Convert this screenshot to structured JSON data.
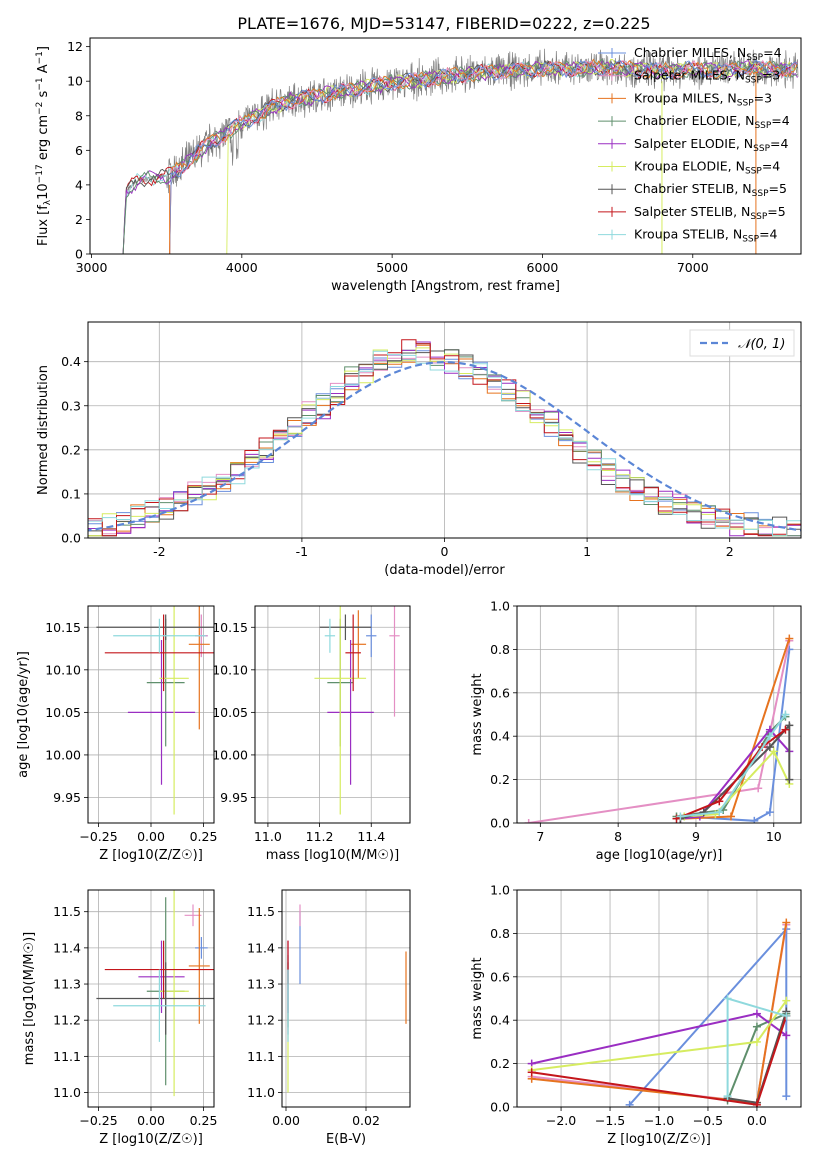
{
  "title": "PLATE=1676, MJD=53147, FIBERID=0222, z=0.225",
  "colors": {
    "chabrier_miles": "#6a8fdd",
    "salpeter_miles": "#e48fc4",
    "kroupa_miles": "#e6731f",
    "chabrier_elodie": "#5f8f6c",
    "salpeter_elodie": "#9a2ec2",
    "kroupa_elodie": "#d6ec60",
    "chabrier_stelib": "#555555",
    "salpeter_stelib": "#c4161b",
    "kroupa_stelib": "#8fd9dd",
    "data_gray": "#808080",
    "gauss": "#5b86d6"
  },
  "chart_data": [
    {
      "id": "spectrum",
      "type": "line",
      "title": "PLATE=1676, MJD=53147, FIBERID=0222, z=0.225",
      "xlabel": "wavelength [Angstrom, rest frame]",
      "ylabel": "Flux [f_λ10^-17 erg cm^-2 s^-1 A^-1]",
      "xlim": [
        2990,
        7720
      ],
      "ylim": [
        0,
        12.5
      ],
      "xticks": [
        3000,
        4000,
        5000,
        6000,
        7000
      ],
      "yticks": [
        0,
        2,
        4,
        6,
        8,
        10,
        12
      ],
      "legend_position": "top-right",
      "series": [
        {
          "name": "Chabrier MILES, N_SSP=4",
          "color": "#6a8fdd"
        },
        {
          "name": "Salpeter MILES, N_SSP=3",
          "color": "#e48fc4"
        },
        {
          "name": "Kroupa MILES, N_SSP=3",
          "color": "#e6731f"
        },
        {
          "name": "Chabrier ELODIE, N_SSP=4",
          "color": "#5f8f6c"
        },
        {
          "name": "Salpeter ELODIE, N_SSP=4",
          "color": "#9a2ec2"
        },
        {
          "name": "Kroupa ELODIE, N_SSP=4",
          "color": "#d6ec60"
        },
        {
          "name": "Chabrier STELIB, N_SSP=5",
          "color": "#555555"
        },
        {
          "name": "Salpeter STELIB, N_SSP=5",
          "color": "#c4161b"
        },
        {
          "name": "Kroupa STELIB, N_SSP=4",
          "color": "#8fd9dd"
        }
      ],
      "continuum_x": [
        3210,
        3230,
        3300,
        3400,
        3500,
        3600,
        3700,
        3800,
        3900,
        4000,
        4100,
        4200,
        4300,
        4400,
        4600,
        4800,
        5000,
        5200,
        5400,
        5600,
        5800,
        6000,
        6200,
        6400,
        6600,
        6800,
        7000,
        7200,
        7400,
        7500
      ],
      "continuum_y": [
        0,
        3.6,
        4.2,
        4.4,
        4.5,
        5.0,
        5.8,
        6.5,
        7.0,
        7.6,
        8.0,
        8.5,
        8.8,
        9.0,
        9.3,
        9.6,
        9.9,
        10.1,
        10.3,
        10.5,
        10.6,
        10.7,
        10.7,
        10.8,
        10.7,
        10.6,
        10.7,
        10.6,
        10.8,
        10.7
      ],
      "model_starts": [
        3210,
        3520,
        3900
      ],
      "red_edge": 7420
    },
    {
      "id": "residual_hist",
      "type": "line",
      "xlabel": "(data-model)/error",
      "ylabel": "Normed distribution",
      "xlim": [
        -2.5,
        2.5
      ],
      "ylim": [
        0,
        0.49
      ],
      "xticks": [
        -2,
        -1,
        0,
        1,
        2
      ],
      "yticks": [
        0,
        0.1,
        0.2,
        0.3,
        0.4
      ],
      "legend": [
        {
          "name": "𝒩(0, 1)",
          "style": "dashed"
        }
      ],
      "bin_width": 0.1,
      "bin_start": -2.5,
      "series_base": [
        0.02,
        0.03,
        0.04,
        0.05,
        0.06,
        0.07,
        0.09,
        0.1,
        0.11,
        0.13,
        0.15,
        0.17,
        0.2,
        0.22,
        0.25,
        0.28,
        0.3,
        0.33,
        0.36,
        0.38,
        0.4,
        0.41,
        0.42,
        0.42,
        0.41,
        0.4,
        0.39,
        0.37,
        0.35,
        0.33,
        0.31,
        0.28,
        0.26,
        0.23,
        0.2,
        0.18,
        0.15,
        0.13,
        0.11,
        0.09,
        0.08,
        0.07,
        0.06,
        0.05,
        0.04,
        0.03,
        0.03,
        0.02,
        0.02,
        0.02
      ]
    },
    {
      "id": "age_vs_Z",
      "type": "scatter",
      "xlabel": "Z [log10(Z/Z☉)]",
      "ylabel": "age [log10(age/yr)]",
      "xlim": [
        -0.3,
        0.3
      ],
      "ylim": [
        9.92,
        10.175
      ],
      "xticks": [
        -0.25,
        0.0,
        0.25
      ],
      "xticklabels": [
        "−0.25",
        "0.00",
        "0.25"
      ],
      "yticks": [
        9.95,
        10.0,
        10.05,
        10.1,
        10.15
      ],
      "points": [
        {
          "x": 0.24,
          "y": 10.14,
          "xerr": 0.03,
          "yerr": 0.025,
          "c": "chabrier_miles"
        },
        {
          "x": 0.24,
          "y": 10.14,
          "xerr": 0.03,
          "yerr": 0.025,
          "c": "salpeter_miles"
        },
        {
          "x": 0.23,
          "y": 10.13,
          "xerr": 0.05,
          "yerr": 0.1,
          "c": "kroupa_miles"
        },
        {
          "x": 0.07,
          "y": 10.085,
          "xerr": 0.09,
          "yerr": 0.075,
          "c": "chabrier_elodie"
        },
        {
          "x": 0.05,
          "y": 10.05,
          "xerr": 0.16,
          "yerr": 0.085,
          "c": "salpeter_elodie"
        },
        {
          "x": 0.11,
          "y": 10.09,
          "xerr": 0.07,
          "yerr": 0.16,
          "c": "kroupa_elodie"
        },
        {
          "x": 0.07,
          "y": 10.15,
          "xerr": 0.33,
          "yerr": 0.015,
          "c": "chabrier_stelib"
        },
        {
          "x": 0.06,
          "y": 10.12,
          "xerr": 0.28,
          "yerr": 0.045,
          "c": "salpeter_stelib"
        },
        {
          "x": 0.04,
          "y": 10.14,
          "xerr": 0.22,
          "yerr": 0.02,
          "c": "kroupa_stelib"
        }
      ]
    },
    {
      "id": "age_vs_mass",
      "type": "scatter",
      "xlabel": "mass [log10(M/M☉)]",
      "ylim": [
        9.92,
        10.175
      ],
      "xlim": [
        10.95,
        11.55
      ],
      "xticks": [
        11.0,
        11.2,
        11.4
      ],
      "xticklabels": [
        "11.0",
        "11.2",
        "11.4"
      ],
      "yticks": [
        9.95,
        10.0,
        10.05,
        10.1,
        10.15
      ],
      "points": [
        {
          "x": 11.4,
          "y": 10.14,
          "xerr": 0.02,
          "yerr": 0.025,
          "c": "chabrier_miles"
        },
        {
          "x": 11.49,
          "y": 10.14,
          "xerr": 0.02,
          "yerr": 0.095,
          "c": "salpeter_miles"
        },
        {
          "x": 11.35,
          "y": 10.13,
          "xerr": 0.03,
          "yerr": 0.04,
          "c": "kroupa_miles"
        },
        {
          "x": 11.28,
          "y": 10.085,
          "xerr": 0.05,
          "yerr": 0.075,
          "c": "chabrier_elodie"
        },
        {
          "x": 11.32,
          "y": 10.05,
          "xerr": 0.09,
          "yerr": 0.085,
          "c": "salpeter_elodie"
        },
        {
          "x": 11.28,
          "y": 10.09,
          "xerr": 0.1,
          "yerr": 0.16,
          "c": "kroupa_elodie"
        },
        {
          "x": 11.3,
          "y": 10.15,
          "xerr": 0.1,
          "yerr": 0.015,
          "c": "chabrier_stelib"
        },
        {
          "x": 11.33,
          "y": 10.12,
          "xerr": 0.03,
          "yerr": 0.045,
          "c": "salpeter_stelib"
        },
        {
          "x": 11.24,
          "y": 10.14,
          "xerr": 0.02,
          "yerr": 0.02,
          "c": "kroupa_stelib"
        }
      ]
    },
    {
      "id": "weight_vs_age",
      "type": "line",
      "xlabel": "age [log10(age/yr)]",
      "ylabel": "mass weight",
      "xlim": [
        6.7,
        10.35
      ],
      "ylim": [
        0,
        1.0
      ],
      "xticks": [
        7,
        8,
        9,
        10
      ],
      "yticks": [
        0,
        0.2,
        0.4,
        0.6,
        0.8,
        1.0
      ],
      "series": [
        {
          "c": "chabrier_miles",
          "x": [
            8.85,
            9.75,
            9.95,
            10.2
          ],
          "y": [
            0.03,
            0.01,
            0.05,
            0.8
          ]
        },
        {
          "c": "salpeter_miles",
          "x": [
            6.85,
            9.8,
            10.2
          ],
          "y": [
            0.0,
            0.16,
            0.84
          ]
        },
        {
          "c": "kroupa_miles",
          "x": [
            8.8,
            9.45,
            10.2
          ],
          "y": [
            0.02,
            0.03,
            0.85
          ]
        },
        {
          "c": "chabrier_elodie",
          "x": [
            8.75,
            9.35,
            9.95,
            10.15
          ],
          "y": [
            0.03,
            0.06,
            0.42,
            0.49
          ]
        },
        {
          "c": "salpeter_elodie",
          "x": [
            8.8,
            9.05,
            9.95,
            10.2
          ],
          "y": [
            0.02,
            0.03,
            0.43,
            0.33
          ]
        },
        {
          "c": "kroupa_elodie",
          "x": [
            8.85,
            9.25,
            10.0,
            10.2
          ],
          "y": [
            0.03,
            0.04,
            0.33,
            0.18
          ]
        },
        {
          "c": "chabrier_stelib",
          "x": [
            8.8,
            9.1,
            9.95,
            10.2,
            10.2
          ],
          "y": [
            0.02,
            0.05,
            0.35,
            0.45,
            0.2
          ]
        },
        {
          "c": "salpeter_stelib",
          "x": [
            8.75,
            9.3,
            9.85,
            10.15
          ],
          "y": [
            0.02,
            0.1,
            0.35,
            0.43
          ]
        },
        {
          "c": "kroupa_stelib",
          "x": [
            8.8,
            9.3,
            9.95,
            10.15
          ],
          "y": [
            0.03,
            0.05,
            0.4,
            0.5
          ]
        }
      ]
    },
    {
      "id": "mass_vs_Z",
      "type": "scatter",
      "xlabel": "Z [log10(Z/Z☉)]",
      "ylabel": "mass [log10(M/M☉)]",
      "xlim": [
        -0.3,
        0.3
      ],
      "ylim": [
        10.96,
        11.56
      ],
      "xticks": [
        -0.25,
        0.0,
        0.25
      ],
      "xticklabels": [
        "−0.25",
        "0.00",
        "0.25"
      ],
      "yticks": [
        11.0,
        11.1,
        11.2,
        11.3,
        11.4,
        11.5
      ],
      "points": [
        {
          "x": 0.24,
          "y": 11.4,
          "xerr": 0.03,
          "yerr": 0.03,
          "c": "chabrier_miles"
        },
        {
          "x": 0.2,
          "y": 11.49,
          "xerr": 0.04,
          "yerr": 0.03,
          "c": "salpeter_miles"
        },
        {
          "x": 0.23,
          "y": 11.35,
          "xerr": 0.05,
          "yerr": 0.16,
          "c": "kroupa_miles"
        },
        {
          "x": 0.07,
          "y": 11.28,
          "xerr": 0.09,
          "yerr": 0.26,
          "c": "chabrier_elodie"
        },
        {
          "x": 0.05,
          "y": 11.32,
          "xerr": 0.11,
          "yerr": 0.1,
          "c": "salpeter_elodie"
        },
        {
          "x": 0.11,
          "y": 11.28,
          "xerr": 0.07,
          "yerr": 0.29,
          "c": "kroupa_elodie"
        },
        {
          "x": 0.07,
          "y": 11.26,
          "xerr": 0.33,
          "yerr": 0.1,
          "c": "chabrier_stelib"
        },
        {
          "x": 0.06,
          "y": 11.34,
          "xerr": 0.28,
          "yerr": 0.08,
          "c": "salpeter_stelib"
        },
        {
          "x": 0.04,
          "y": 11.24,
          "xerr": 0.22,
          "yerr": 0.1,
          "c": "kroupa_stelib"
        }
      ]
    },
    {
      "id": "mass_vs_ebv",
      "type": "scatter",
      "xlabel": "E(B-V)",
      "xlim": [
        -0.001,
        0.031
      ],
      "ylim": [
        10.96,
        11.56
      ],
      "xticks": [
        0.0,
        0.02
      ],
      "xticklabels": [
        "0.00",
        "0.02"
      ],
      "yticks": [
        11.0,
        11.1,
        11.2,
        11.3,
        11.4,
        11.5
      ],
      "points": [
        {
          "x": 0.0035,
          "y": 11.4,
          "yerr": 0.1,
          "c": "chabrier_miles"
        },
        {
          "x": 0.0035,
          "y": 11.49,
          "yerr": 0.03,
          "c": "salpeter_miles"
        },
        {
          "x": 0.03,
          "y": 11.29,
          "yerr": 0.1,
          "c": "kroupa_miles"
        },
        {
          "x": 0.0005,
          "y": 11.28,
          "yerr": 0.1,
          "c": "chabrier_elodie"
        },
        {
          "x": 0.0005,
          "y": 11.32,
          "yerr": 0.1,
          "c": "salpeter_elodie"
        },
        {
          "x": 0.0005,
          "y": 11.08,
          "yerr": 0.08,
          "c": "kroupa_elodie"
        },
        {
          "x": 0.0005,
          "y": 11.26,
          "yerr": 0.1,
          "c": "chabrier_stelib"
        },
        {
          "x": 0.0005,
          "y": 11.36,
          "yerr": 0.06,
          "c": "salpeter_stelib"
        },
        {
          "x": 0.0005,
          "y": 11.24,
          "yerr": 0.1,
          "c": "kroupa_stelib"
        }
      ]
    },
    {
      "id": "weight_vs_Z",
      "type": "line",
      "xlabel": "Z [log10(Z/Z☉)]",
      "ylabel": "mass weight",
      "xlim": [
        -2.45,
        0.45
      ],
      "ylim": [
        0,
        1.0
      ],
      "xticks": [
        -2.0,
        -1.5,
        -1.0,
        -0.5,
        0.0
      ],
      "xticklabels": [
        "−2.0",
        "−1.5",
        "−1.0",
        "−0.5",
        "0.0"
      ],
      "yticks": [
        0,
        0.2,
        0.4,
        0.6,
        0.8,
        1.0
      ],
      "series": [
        {
          "c": "chabrier_miles",
          "x": [
            -1.3,
            0.3,
            0.3
          ],
          "y": [
            0.01,
            0.82,
            0.05
          ]
        },
        {
          "c": "salpeter_miles",
          "x": [
            -2.3,
            0.0,
            0.3
          ],
          "y": [
            0.14,
            0.02,
            0.84
          ]
        },
        {
          "c": "kroupa_miles",
          "x": [
            -2.3,
            0.0,
            0.3
          ],
          "y": [
            0.13,
            0.02,
            0.85
          ]
        },
        {
          "c": "chabrier_elodie",
          "x": [
            -0.3,
            0.0,
            0.3
          ],
          "y": [
            0.03,
            0.37,
            0.43
          ]
        },
        {
          "c": "salpeter_elodie",
          "x": [
            -2.3,
            0.0,
            0.3
          ],
          "y": [
            0.2,
            0.43,
            0.33
          ]
        },
        {
          "c": "kroupa_elodie",
          "x": [
            -2.3,
            0.0,
            0.3
          ],
          "y": [
            0.17,
            0.3,
            0.49
          ]
        },
        {
          "c": "chabrier_stelib",
          "x": [
            -0.3,
            0.0,
            0.3
          ],
          "y": [
            0.04,
            0.02,
            0.44
          ]
        },
        {
          "c": "salpeter_stelib",
          "x": [
            -2.3,
            0.0,
            0.3
          ],
          "y": [
            0.16,
            0.01,
            0.42
          ]
        },
        {
          "c": "kroupa_stelib",
          "x": [
            -0.3,
            -0.3,
            0.3
          ],
          "y": [
            0.05,
            0.5,
            0.42
          ]
        }
      ]
    }
  ]
}
